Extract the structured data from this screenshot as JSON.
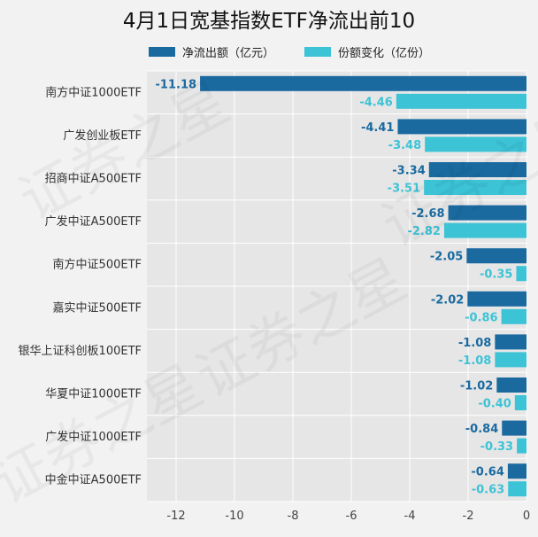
{
  "chart_data": {
    "type": "bar",
    "orientation": "horizontal",
    "title": "4月1日宽基指数ETF净流出前10",
    "categories": [
      "南方中证1000ETF",
      "广发创业板ETF",
      "招商中证A500ETF",
      "广发中证A500ETF",
      "南方中证500ETF",
      "嘉实中证500ETF",
      "银华上证科创板100ETF",
      "华夏中证1000ETF",
      "广发中证1000ETF",
      "中金中证A500ETF"
    ],
    "series": [
      {
        "name": "净流出额（亿元）",
        "color": "#1a6aa0",
        "label_color": "#1a6aa0",
        "values": [
          -11.18,
          -4.41,
          -3.34,
          -2.68,
          -2.05,
          -2.02,
          -1.08,
          -1.02,
          -0.84,
          -0.64
        ],
        "labels": [
          "-11.18",
          "-4.41",
          "-3.34",
          "-2.68",
          "-2.05",
          "-2.02",
          "-1.08",
          "-1.02",
          "-0.84",
          "-0.64"
        ]
      },
      {
        "name": "份额变化（亿份）",
        "color": "#3cc3d6",
        "label_color": "#3cc3d6",
        "values": [
          -4.46,
          -3.48,
          -3.51,
          -2.82,
          -0.35,
          -0.86,
          -1.08,
          -0.4,
          -0.33,
          -0.63
        ],
        "labels": [
          "-4.46",
          "-3.48",
          "-3.51",
          "-2.82",
          "-0.35",
          "-0.86",
          "-1.08",
          "-0.40",
          "-0.33",
          "-0.63"
        ]
      }
    ],
    "xlim": [
      -13,
      0
    ],
    "xticks": [
      -12,
      -10,
      -8,
      -6,
      -4,
      -2,
      0
    ],
    "xtick_labels": [
      "-12",
      "-10",
      "-8",
      "-6",
      "-4",
      "-2",
      "0"
    ],
    "grid": true,
    "legend_position": "top",
    "plot_background": "#e6e6e6",
    "watermark": "证券之星"
  }
}
